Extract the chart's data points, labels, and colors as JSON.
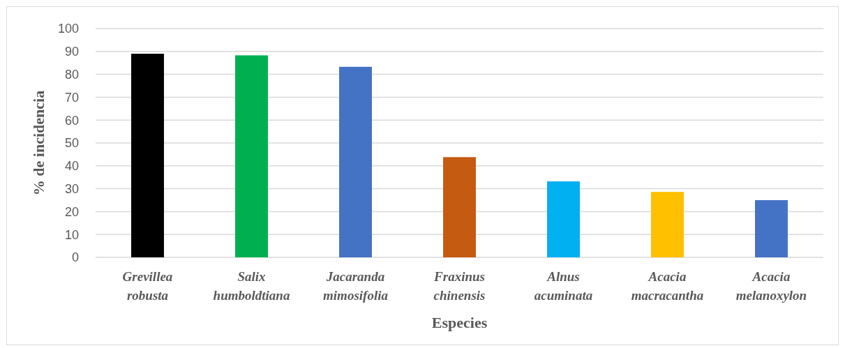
{
  "chart_data": {
    "type": "bar",
    "xlabel": "Especies",
    "ylabel": "% de incidencia",
    "categories": [
      "Grevillea robusta",
      "Salix humboldtiana",
      "Jacaranda mimosifolia",
      "Fraxinus chinensis",
      "Alnus acuminata",
      "Acacia macracantha",
      "Acacia melanoxylon"
    ],
    "values": [
      89,
      88.3,
      83.3,
      43.8,
      33.2,
      28.6,
      25
    ],
    "colors": [
      "#000000",
      "#00b050",
      "#4472c4",
      "#c55a11",
      "#00b0f0",
      "#ffc000",
      "#4472c4"
    ],
    "ylim": [
      0,
      100
    ],
    "yticks": [
      0,
      10,
      20,
      30,
      40,
      50,
      60,
      70,
      80,
      90,
      100
    ],
    "grid": "y"
  }
}
